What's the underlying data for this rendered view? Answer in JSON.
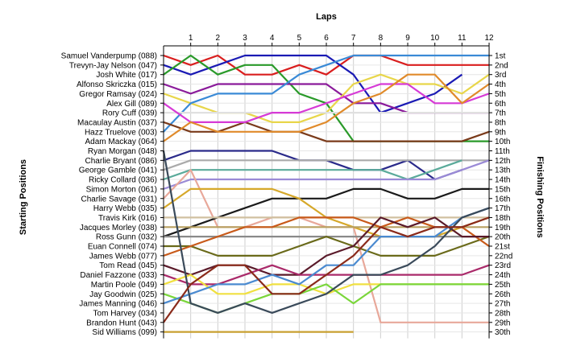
{
  "chart_data": {
    "type": "line",
    "title": "",
    "xlabel": "Laps",
    "ylabel_left": "Starting Positions",
    "ylabel_right": "Finishing Positions",
    "laps": [
      "1",
      "2",
      "3",
      "4",
      "5",
      "6",
      "7",
      "8",
      "9",
      "10",
      "11",
      "12"
    ],
    "finish_labels": [
      "1st",
      "2nd",
      "3rd",
      "4th",
      "5th",
      "6th",
      "7th",
      "8th",
      "9th",
      "10th",
      "11th",
      "12th",
      "13th",
      "14th",
      "15th",
      "16th",
      "17th",
      "18th",
      "19th",
      "20th",
      "21st",
      "22nd",
      "23rd",
      "24th",
      "25th",
      "26th",
      "27th",
      "28th",
      "29th",
      "30th"
    ],
    "ylim": [
      1,
      30
    ],
    "grid": true,
    "series": [
      {
        "name": "Samuel Vanderpump (088)",
        "color": "#d91e1e",
        "positions": [
          1,
          2,
          1,
          3,
          3,
          2,
          3,
          1,
          1,
          2,
          2,
          2,
          2
        ]
      },
      {
        "name": "Trevyn-Jay Nelson (047)",
        "color": "#1a1ab4",
        "positions": [
          2,
          3,
          2,
          1,
          1,
          1,
          1,
          3,
          7,
          6,
          5,
          3,
          null
        ]
      },
      {
        "name": "Josh White (017)",
        "color": "#2a9a2a",
        "positions": [
          3,
          1,
          3,
          2,
          2,
          5,
          6,
          10,
          10,
          10,
          10,
          10,
          10
        ]
      },
      {
        "name": "Alfonso Skriczka (015)",
        "color": "#8a1a9a",
        "positions": [
          4,
          5,
          4,
          4,
          4,
          4,
          4,
          6,
          6,
          7,
          7,
          7,
          7
        ]
      },
      {
        "name": "Gregor Ramsay (024)",
        "color": "#e8d64a",
        "positions": [
          5,
          6,
          7,
          7,
          8,
          8,
          7,
          4,
          3,
          4,
          4,
          5,
          3
        ]
      },
      {
        "name": "Alex Gill (089)",
        "color": "#3a8ad6",
        "positions": [
          9,
          6,
          5,
          5,
          5,
          3,
          2,
          1,
          1,
          1,
          1,
          1,
          1
        ]
      },
      {
        "name": "Rory Cuff (039)",
        "color": "#e0e0e0",
        "positions": [
          7,
          7,
          7,
          7,
          7,
          7,
          7,
          7,
          7,
          7,
          7,
          7,
          7
        ]
      },
      {
        "name": "Macaulay Austin (037)",
        "color": "#7a3a1a",
        "positions": [
          8,
          9,
          9,
          8,
          9,
          9,
          10,
          10,
          10,
          10,
          10,
          10,
          9
        ]
      },
      {
        "name": "Hazz Truelove (003)",
        "color": "#d63ad6",
        "positions": [
          6,
          8,
          8,
          8,
          7,
          7,
          6,
          5,
          4,
          4,
          6,
          6,
          5
        ]
      },
      {
        "name": "Adam Mackay (064)",
        "color": "#e08a2a",
        "positions": [
          10,
          8,
          9,
          9,
          9,
          9,
          8,
          6,
          5,
          3,
          3,
          6,
          4
        ]
      },
      {
        "name": "Ryan Morgan (048)",
        "color": "#2a2a8a",
        "positions": [
          12,
          11,
          11,
          11,
          11,
          12,
          12,
          13,
          13,
          12,
          14,
          13,
          null
        ]
      },
      {
        "name": "Charlie Bryant (086)",
        "color": "#aaaaaa",
        "positions": [
          13,
          12,
          12,
          12,
          12,
          12,
          12,
          12,
          12,
          12,
          12,
          12,
          12
        ]
      },
      {
        "name": "George Gamble (041)",
        "color": "#5aaa9a",
        "positions": [
          14,
          13,
          13,
          13,
          13,
          13,
          13,
          13,
          13,
          14,
          13,
          12,
          null
        ]
      },
      {
        "name": "Ricky Collard (036)",
        "color": "#9a8ad6",
        "positions": [
          15,
          14,
          14,
          14,
          14,
          14,
          14,
          14,
          14,
          14,
          14,
          13,
          12
        ]
      },
      {
        "name": "Simon Morton (061)",
        "color": "#e8a89a",
        "positions": [
          16,
          13,
          19,
          19,
          18,
          18,
          19,
          19,
          29,
          29,
          29,
          29,
          29
        ]
      },
      {
        "name": "Charlie Savage (031)",
        "color": "#1a1a1a",
        "positions": [
          20,
          19,
          18,
          17,
          16,
          16,
          16,
          15,
          15,
          16,
          16,
          15,
          15
        ]
      },
      {
        "name": "Harry Webb (035)",
        "color": "#d6a82a",
        "positions": [
          17,
          15,
          15,
          15,
          15,
          16,
          18,
          19,
          20,
          20,
          20,
          19,
          18
        ]
      },
      {
        "name": "Travis Kirk (016)",
        "color": "#d0c0a0",
        "positions": [
          18,
          18,
          18,
          18,
          18,
          18,
          18,
          18,
          18,
          18,
          18,
          18,
          18
        ]
      },
      {
        "name": "Jacques Morley (038)",
        "color": "#b8a060",
        "positions": [
          19,
          19,
          19,
          19,
          19,
          19,
          19,
          19,
          19,
          19,
          19,
          19,
          19
        ]
      },
      {
        "name": "Ross Gunn (032)",
        "color": "#8a8a8a",
        "positions": [
          20,
          20,
          20,
          20,
          20,
          20,
          20,
          20,
          20,
          20,
          20,
          20,
          20
        ]
      },
      {
        "name": "Euan Connell (074)",
        "color": "#6a6a1a",
        "positions": [
          21,
          21,
          22,
          22,
          22,
          21,
          20,
          21,
          22,
          22,
          22,
          21,
          20
        ]
      },
      {
        "name": "James Webb (077)",
        "color": "#c85a1a",
        "positions": [
          22,
          21,
          20,
          19,
          19,
          18,
          18,
          18,
          19,
          18,
          19,
          19,
          21
        ]
      },
      {
        "name": "Tom Read (045)",
        "color": "#5a1a2a",
        "positions": [
          23,
          24,
          23,
          23,
          24,
          24,
          22,
          21,
          18,
          19,
          18,
          20,
          20
        ]
      },
      {
        "name": "Daniel Fazzone (033)",
        "color": "#aa2a6a",
        "positions": [
          24,
          25,
          25,
          24,
          23,
          24,
          24,
          24,
          24,
          24,
          24,
          24,
          23
        ]
      },
      {
        "name": "Martin Poole (049)",
        "color": "#f0e040",
        "positions": [
          25,
          24,
          26,
          26,
          25,
          25,
          26,
          25,
          25,
          25,
          25,
          25,
          25
        ]
      },
      {
        "name": "Jay Goodwin (025)",
        "color": "#7ad63a",
        "positions": [
          26,
          27,
          28,
          27,
          26,
          26,
          25,
          27,
          25,
          25,
          25,
          25,
          25
        ]
      },
      {
        "name": "James Manning (046)",
        "color": "#4a8ad0",
        "positions": [
          27,
          26,
          25,
          25,
          24,
          25,
          23,
          23,
          20,
          20,
          20,
          18,
          17
        ]
      },
      {
        "name": "Tom Harvey (034)",
        "color": "#3a4a5a",
        "positions": [
          11,
          27,
          28,
          27,
          28,
          27,
          26,
          24,
          24,
          23,
          21,
          18,
          17
        ]
      },
      {
        "name": "Brandon Hunt (043)",
        "color": "#8a2a1a",
        "positions": [
          29,
          25,
          23,
          23,
          26,
          26,
          24,
          22,
          19,
          20,
          19,
          19,
          18
        ]
      },
      {
        "name": "Sid Williams (099)",
        "color": "#c8a030",
        "positions": [
          30,
          30,
          30,
          30,
          30,
          30,
          30,
          30,
          null,
          null,
          null,
          null,
          null
        ]
      }
    ]
  }
}
